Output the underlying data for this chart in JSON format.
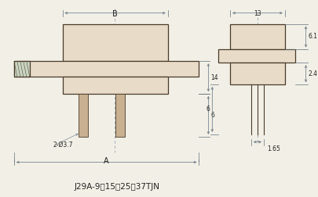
{
  "title": "J29A-9、15、25、37TJN",
  "bg_color": "#f2f0e6",
  "line_color": "#4a3a2a",
  "dim_color": "#607080",
  "fill_body": "#e8dcc8",
  "fill_notch": "#c8d4c0",
  "ann_hole": "2-Ø3.7",
  "ann_A": "A",
  "ann_B": "B",
  "ann_14": "14",
  "ann_6": "6",
  "ann_13": "13",
  "ann_61": "6.1",
  "ann_24": "2.4",
  "ann_165": "1.65"
}
